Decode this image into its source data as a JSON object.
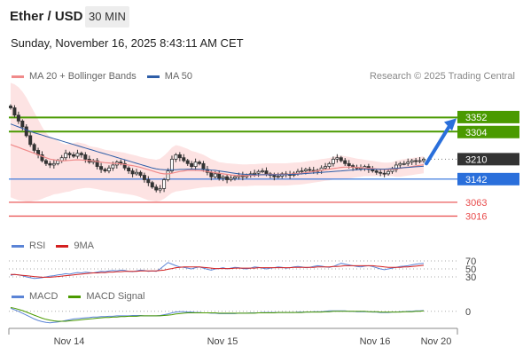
{
  "header": {
    "title": "Ether / USD",
    "timeframe": "30 MIN",
    "datetime": "Sunday, November 16, 2025 8:43:11 AM CET"
  },
  "legend": {
    "ma20": "MA 20 + Bollinger Bands",
    "ma50": "MA 50",
    "credit": "Research © 2025 Trading Central",
    "rsi": "RSI",
    "rsi_ma": "9MA",
    "macd": "MACD",
    "macd_signal": "MACD Signal"
  },
  "colors": {
    "green": "#4a9a00",
    "blue": "#2a6fdb",
    "red": "#e84b4b",
    "dark": "#333333",
    "ma20": "#f08a8a",
    "ma50": "#2e5ea8",
    "band": "#fde3e3",
    "rsi": "#5b84d6",
    "rsi_ma": "#d42020",
    "macd": "#5b84d6",
    "macd_signal": "#4a9a00"
  },
  "chart_data": [
    {
      "type": "candlestick",
      "x_ticks": [
        "Nov 14",
        "Nov 15",
        "Nov 16",
        "Nov 20"
      ],
      "ylim": [
        2960,
        3450
      ],
      "levels": [
        {
          "value": 3352,
          "label": "3352",
          "style": "resistance"
        },
        {
          "value": 3304,
          "label": "3304",
          "style": "resistance"
        },
        {
          "value": 3210,
          "label": "3210",
          "style": "last-price"
        },
        {
          "value": 3142,
          "label": "3142",
          "style": "pivot"
        },
        {
          "value": 3063,
          "label": "3063",
          "style": "support"
        },
        {
          "value": 3016,
          "label": "3016",
          "style": "support"
        }
      ],
      "close": [
        3385,
        3360,
        3340,
        3320,
        3290,
        3260,
        3240,
        3225,
        3205,
        3195,
        3190,
        3195,
        3205,
        3215,
        3230,
        3225,
        3220,
        3230,
        3225,
        3210,
        3200,
        3205,
        3185,
        3175,
        3170,
        3180,
        3190,
        3200,
        3195,
        3180,
        3170,
        3160,
        3165,
        3155,
        3140,
        3130,
        3115,
        3105,
        3110,
        3140,
        3170,
        3210,
        3225,
        3215,
        3205,
        3195,
        3185,
        3200,
        3195,
        3175,
        3165,
        3150,
        3160,
        3145,
        3150,
        3140,
        3145,
        3150,
        3155,
        3150,
        3155,
        3160,
        3162,
        3168,
        3170,
        3160,
        3155,
        3150,
        3152,
        3160,
        3158,
        3155,
        3162,
        3168,
        3170,
        3175,
        3172,
        3168,
        3172,
        3180,
        3185,
        3195,
        3210,
        3215,
        3205,
        3195,
        3188,
        3182,
        3178,
        3180,
        3185,
        3175,
        3170,
        3165,
        3162,
        3160,
        3168,
        3175,
        3190,
        3195,
        3195,
        3200,
        3205,
        3202,
        3205,
        3210
      ],
      "ma20": [
        3260,
        3255,
        3250,
        3245,
        3240,
        3235,
        3230,
        3225,
        3220,
        3215,
        3210,
        3208,
        3206,
        3204,
        3205,
        3206,
        3207,
        3208,
        3207,
        3206,
        3205,
        3204,
        3202,
        3200,
        3198,
        3197,
        3196,
        3195,
        3194,
        3192,
        3190,
        3188,
        3185,
        3182,
        3178,
        3174,
        3170,
        3166,
        3162,
        3160,
        3160,
        3162,
        3165,
        3168,
        3170,
        3172,
        3172,
        3172,
        3171,
        3170,
        3168,
        3166,
        3164,
        3162,
        3160,
        3158,
        3156,
        3155,
        3154,
        3154,
        3154,
        3155,
        3155,
        3156,
        3157,
        3158,
        3158,
        3158,
        3158,
        3158,
        3158,
        3159,
        3160,
        3161,
        3162,
        3164,
        3166,
        3168,
        3170,
        3172,
        3174,
        3176,
        3178,
        3180,
        3182,
        3183,
        3183,
        3183,
        3182,
        3181,
        3180,
        3179,
        3178,
        3177,
        3176,
        3175,
        3175,
        3176,
        3177,
        3179,
        3181,
        3183,
        3185,
        3187,
        3189,
        3191
      ],
      "bb_upper": [
        3470,
        3465,
        3455,
        3440,
        3420,
        3395,
        3370,
        3345,
        3320,
        3300,
        3285,
        3280,
        3272,
        3265,
        3260,
        3262,
        3265,
        3268,
        3265,
        3262,
        3255,
        3252,
        3250,
        3246,
        3242,
        3240,
        3238,
        3236,
        3234,
        3232,
        3228,
        3225,
        3222,
        3218,
        3215,
        3212,
        3210,
        3208,
        3212,
        3222,
        3235,
        3250,
        3258,
        3255,
        3250,
        3245,
        3238,
        3235,
        3230,
        3225,
        3218,
        3210,
        3206,
        3200,
        3198,
        3196,
        3195,
        3194,
        3193,
        3192,
        3192,
        3193,
        3193,
        3194,
        3195,
        3196,
        3196,
        3196,
        3196,
        3196,
        3196,
        3197,
        3198,
        3199,
        3200,
        3202,
        3204,
        3206,
        3208,
        3210,
        3212,
        3214,
        3218,
        3222,
        3222,
        3220,
        3218,
        3215,
        3212,
        3210,
        3208,
        3206,
        3204,
        3202,
        3200,
        3198,
        3198,
        3200,
        3205,
        3208,
        3210,
        3212,
        3214,
        3216,
        3218,
        3220
      ],
      "bb_lower": [
        3080,
        3075,
        3070,
        3068,
        3065,
        3065,
        3068,
        3070,
        3075,
        3080,
        3085,
        3090,
        3092,
        3095,
        3098,
        3100,
        3105,
        3108,
        3110,
        3112,
        3112,
        3110,
        3108,
        3105,
        3102,
        3100,
        3098,
        3096,
        3094,
        3092,
        3090,
        3088,
        3085,
        3080,
        3075,
        3070,
        3068,
        3066,
        3068,
        3075,
        3085,
        3095,
        3100,
        3102,
        3104,
        3106,
        3108,
        3110,
        3112,
        3114,
        3114,
        3115,
        3116,
        3117,
        3118,
        3118,
        3118,
        3118,
        3118,
        3118,
        3118,
        3119,
        3120,
        3120,
        3120,
        3120,
        3120,
        3120,
        3120,
        3120,
        3120,
        3121,
        3122,
        3123,
        3124,
        3126,
        3128,
        3130,
        3132,
        3134,
        3136,
        3138,
        3140,
        3140,
        3140,
        3142,
        3144,
        3146,
        3148,
        3150,
        3152,
        3152,
        3152,
        3152,
        3152,
        3152,
        3152,
        3152,
        3150,
        3150,
        3152,
        3154,
        3156,
        3158,
        3160,
        3162
      ],
      "ma50": [
        3330,
        3325,
        3320,
        3315,
        3310,
        3305,
        3300,
        3296,
        3292,
        3288,
        3284,
        3280,
        3276,
        3272,
        3268,
        3264,
        3260,
        3256,
        3252,
        3248,
        3244,
        3240,
        3236,
        3232,
        3228,
        3224,
        3220,
        3216,
        3212,
        3208,
        3204,
        3200,
        3196,
        3192,
        3188,
        3184,
        3180,
        3177,
        3175,
        3174,
        3174,
        3174,
        3174,
        3175,
        3175,
        3176,
        3176,
        3176,
        3176,
        3175,
        3174,
        3173,
        3172,
        3170,
        3168,
        3166,
        3164,
        3162,
        3160,
        3159,
        3158,
        3157,
        3157,
        3157,
        3157,
        3157,
        3157,
        3157,
        3157,
        3157,
        3157,
        3158,
        3158,
        3159,
        3160,
        3161,
        3162,
        3163,
        3164,
        3165,
        3166,
        3167,
        3168,
        3169,
        3170,
        3171,
        3172,
        3173,
        3174,
        3175,
        3176,
        3176,
        3176,
        3176,
        3176,
        3176,
        3177,
        3178,
        3179,
        3180,
        3181,
        3182,
        3183,
        3184,
        3185,
        3186
      ]
    },
    {
      "type": "line",
      "name": "RSI",
      "y_ticks": [
        70,
        50,
        30
      ],
      "ylim": [
        0,
        100
      ],
      "rsi": [
        34,
        36,
        35,
        33,
        30,
        28,
        26,
        27,
        28,
        30,
        32,
        33,
        35,
        36,
        38,
        37,
        39,
        41,
        40,
        42,
        41,
        40,
        42,
        44,
        43,
        45,
        46,
        45,
        47,
        46,
        44,
        43,
        45,
        47,
        46,
        44,
        45,
        44,
        50,
        58,
        66,
        62,
        58,
        55,
        54,
        52,
        50,
        53,
        55,
        52,
        49,
        47,
        50,
        51,
        53,
        50,
        52,
        54,
        53,
        51,
        50,
        52,
        55,
        54,
        52,
        50,
        52,
        53,
        55,
        54,
        52,
        53,
        55,
        56,
        55,
        53,
        54,
        56,
        58,
        57,
        55,
        54,
        56,
        60,
        64,
        62,
        60,
        58,
        56,
        55,
        57,
        58,
        56,
        53,
        50,
        48,
        50,
        52,
        54,
        56,
        57,
        58,
        60,
        62,
        63,
        64
      ],
      "rsi_ma": [
        36,
        36,
        35,
        34,
        33,
        32,
        31,
        30,
        29,
        29,
        29,
        30,
        31,
        32,
        33,
        34,
        35,
        36,
        37,
        38,
        39,
        40,
        40,
        41,
        41,
        42,
        42,
        43,
        43,
        44,
        44,
        44,
        44,
        45,
        45,
        45,
        45,
        45,
        46,
        47,
        49,
        51,
        53,
        54,
        55,
        55,
        55,
        55,
        55,
        54,
        53,
        52,
        51,
        51,
        51,
        51,
        51,
        52,
        52,
        52,
        52,
        52,
        52,
        53,
        53,
        53,
        53,
        53,
        53,
        53,
        53,
        53,
        54,
        54,
        54,
        54,
        54,
        54,
        55,
        55,
        55,
        55,
        56,
        56,
        57,
        58,
        58,
        58,
        58,
        58,
        58,
        58,
        58,
        57,
        56,
        55,
        54,
        54,
        54,
        54,
        55,
        55,
        56,
        57,
        58,
        59
      ]
    },
    {
      "type": "line",
      "name": "MACD",
      "y_ticks": [
        0
      ],
      "ylim": [
        -40,
        25
      ],
      "macd": [
        8,
        4,
        0,
        -5,
        -10,
        -15,
        -20,
        -24,
        -27,
        -29,
        -30,
        -29,
        -28,
        -26,
        -24,
        -22,
        -20,
        -19,
        -18,
        -17,
        -16,
        -15,
        -15,
        -14,
        -14,
        -13,
        -13,
        -12,
        -12,
        -12,
        -12,
        -11,
        -11,
        -11,
        -12,
        -12,
        -12,
        -12,
        -11,
        -9,
        -7,
        -4,
        -2,
        -1,
        -1,
        -2,
        -2,
        -3,
        -3,
        -4,
        -4,
        -5,
        -5,
        -6,
        -6,
        -6,
        -6,
        -6,
        -5,
        -5,
        -5,
        -4,
        -4,
        -4,
        -3,
        -3,
        -3,
        -3,
        -3,
        -3,
        -3,
        -3,
        -3,
        -2,
        -2,
        -2,
        -2,
        -1,
        -1,
        -1,
        0,
        1,
        1,
        1,
        1,
        1,
        0,
        0,
        -1,
        -1,
        -1,
        -1,
        -2,
        -2,
        -3,
        -3,
        -3,
        -2,
        -2,
        -1,
        -1,
        0,
        0,
        1,
        1,
        2
      ],
      "macd_signal": [
        10,
        8,
        5,
        2,
        -2,
        -6,
        -10,
        -14,
        -18,
        -21,
        -23,
        -25,
        -26,
        -26,
        -26,
        -25,
        -24,
        -23,
        -22,
        -21,
        -20,
        -19,
        -18,
        -17,
        -16,
        -16,
        -15,
        -15,
        -14,
        -14,
        -13,
        -13,
        -13,
        -12,
        -12,
        -12,
        -12,
        -12,
        -12,
        -11,
        -10,
        -9,
        -7,
        -6,
        -5,
        -4,
        -4,
        -4,
        -4,
        -4,
        -4,
        -4,
        -4,
        -5,
        -5,
        -5,
        -5,
        -5,
        -5,
        -5,
        -5,
        -5,
        -5,
        -4,
        -4,
        -4,
        -4,
        -4,
        -3,
        -3,
        -3,
        -3,
        -3,
        -3,
        -3,
        -2,
        -2,
        -2,
        -2,
        -2,
        -1,
        -1,
        0,
        0,
        0,
        0,
        0,
        0,
        0,
        0,
        0,
        -1,
        -1,
        -1,
        -2,
        -2,
        -2,
        -2,
        -2,
        -2,
        -1,
        -1,
        -1,
        0,
        0,
        1
      ]
    }
  ]
}
